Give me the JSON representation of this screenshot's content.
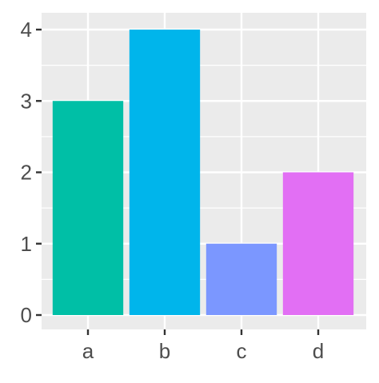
{
  "chart_data": {
    "type": "bar",
    "categories": [
      "a",
      "b",
      "c",
      "d"
    ],
    "values": [
      3,
      4,
      1,
      2
    ],
    "colors": [
      "#00BFA6",
      "#00B5EB",
      "#7B97FF",
      "#E26FF4"
    ],
    "title": "",
    "xlabel": "",
    "ylabel": "",
    "ylim": [
      0,
      4.2
    ],
    "y_ticks": [
      "0",
      "1",
      "2",
      "3",
      "4"
    ],
    "grid": true,
    "legend": "none",
    "panel_background": "#EBEBEB",
    "grid_color": "#FFFFFF",
    "tick_text_color": "#4D4D4D"
  }
}
